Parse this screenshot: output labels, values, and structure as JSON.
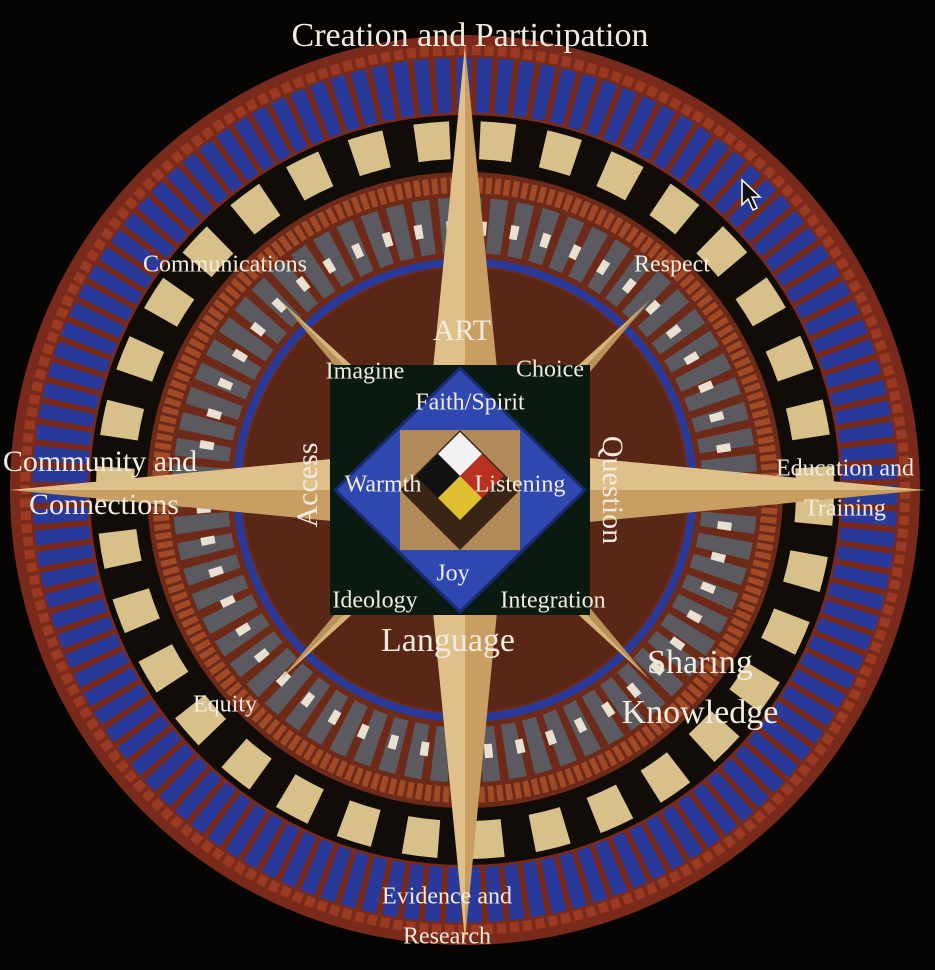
{
  "header": {
    "title": "Creation and Participation"
  },
  "labels": {
    "communications": "Communications",
    "respect": "Respect",
    "art": "ART",
    "imagine": "Imagine",
    "choice": "Choice",
    "faith": "Faith/Spirit",
    "access": "Access",
    "question": "Question",
    "community": [
      "Community and",
      "Connections"
    ],
    "warmth": "Warmth",
    "listening": "Listening",
    "education": [
      "Education and",
      "Training"
    ],
    "joy": "Joy",
    "ideology": "Ideology",
    "integration": "Integration",
    "language": "Language",
    "sharing": [
      "Sharing",
      "Knowledge"
    ],
    "equity": "Equity",
    "evidence": [
      "Evidence and",
      "Research"
    ]
  }
}
